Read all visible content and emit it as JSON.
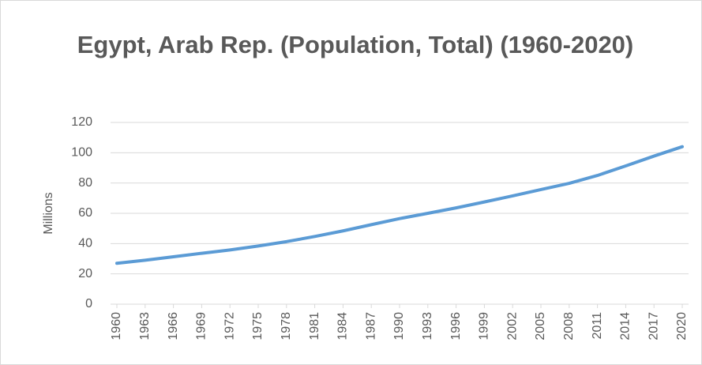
{
  "chart_data": {
    "type": "line",
    "title": "Egypt, Arab Rep. (Population, Total) (1960-2020)",
    "y_label": "Millions",
    "x": [
      1960,
      1963,
      1966,
      1969,
      1972,
      1975,
      1978,
      1981,
      1984,
      1987,
      1990,
      1993,
      1996,
      1999,
      2002,
      2005,
      2008,
      2011,
      2014,
      2017,
      2020
    ],
    "series": [
      {
        "name": "Population",
        "color": "#5b9bd5",
        "values": [
          27.0,
          29.0,
          31.3,
          33.6,
          35.8,
          38.4,
          41.3,
          44.7,
          48.4,
          52.5,
          56.5,
          60.0,
          63.6,
          67.5,
          71.5,
          75.7,
          79.8,
          85.0,
          91.3,
          97.8,
          104.0
        ]
      }
    ],
    "xlim": [
      1960,
      2020
    ],
    "xticks": [
      1960,
      1963,
      1966,
      1969,
      1972,
      1975,
      1978,
      1981,
      1984,
      1987,
      1990,
      1993,
      1996,
      1999,
      2002,
      2005,
      2008,
      2011,
      2014,
      2017,
      2020
    ],
    "ylim": [
      0,
      120
    ],
    "yticks": [
      0,
      20,
      40,
      60,
      80,
      100,
      120
    ],
    "grid": true
  }
}
